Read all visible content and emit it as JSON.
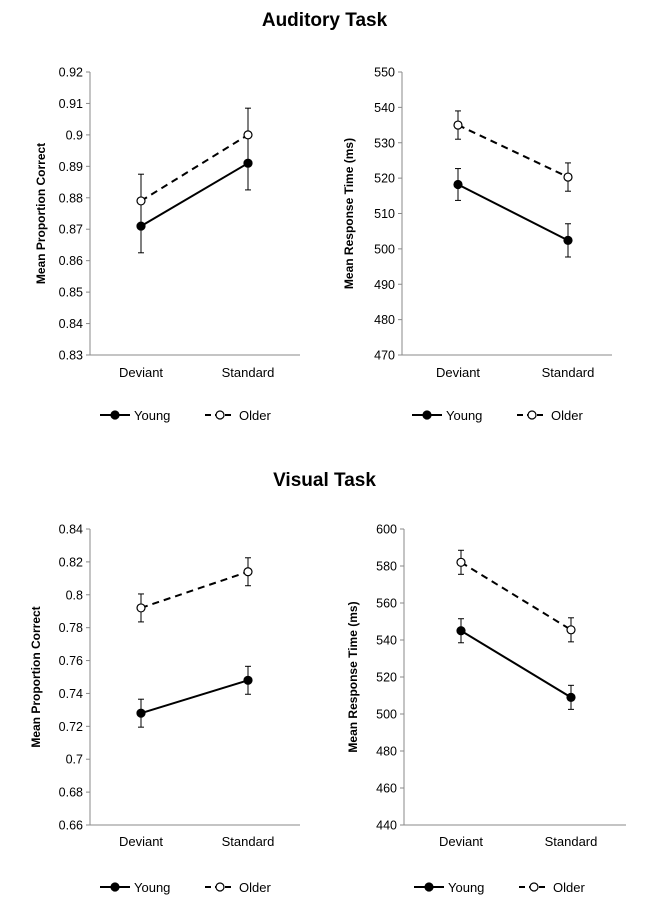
{
  "sections": [
    {
      "title": "Auditory Task"
    },
    {
      "title": "Visual Task"
    }
  ],
  "chart_data": [
    {
      "type": "line",
      "title": "",
      "xlabel": "",
      "ylabel": "Mean Proportion Correct",
      "categories": [
        "Deviant",
        "Standard"
      ],
      "ylim": [
        0.83,
        0.92
      ],
      "yticks": [
        0.83,
        0.84,
        0.85,
        0.86,
        0.87,
        0.88,
        0.89,
        0.9,
        0.91,
        0.92
      ],
      "series": [
        {
          "name": "Young",
          "values": [
            0.871,
            0.891
          ],
          "error": [
            0.0085,
            0.0085
          ],
          "style": "solid",
          "marker": "filled"
        },
        {
          "name": "Older",
          "values": [
            0.879,
            0.9
          ],
          "error": [
            0.0085,
            0.0085
          ],
          "style": "dashed",
          "marker": "open"
        }
      ],
      "legend": "bottom",
      "grid": false
    },
    {
      "type": "line",
      "title": "",
      "xlabel": "",
      "ylabel": "Mean Response Time (ms)",
      "categories": [
        "Deviant",
        "Standard"
      ],
      "ylim": [
        470,
        550
      ],
      "yticks": [
        470,
        480,
        490,
        500,
        510,
        520,
        530,
        540,
        550
      ],
      "series": [
        {
          "name": "Young",
          "values": [
            518.2,
            502.4
          ],
          "error": [
            4.5,
            4.7
          ],
          "style": "solid",
          "marker": "filled"
        },
        {
          "name": "Older",
          "values": [
            535.0,
            520.3
          ],
          "error": [
            4.0,
            4.0
          ],
          "style": "dashed",
          "marker": "open"
        }
      ],
      "legend": "bottom",
      "grid": false
    },
    {
      "type": "line",
      "title": "",
      "xlabel": "",
      "ylabel": "Mean Proportion Correct",
      "categories": [
        "Deviant",
        "Standard"
      ],
      "ylim": [
        0.66,
        0.84
      ],
      "yticks": [
        0.66,
        0.68,
        0.7,
        0.72,
        0.74,
        0.76,
        0.78,
        0.8,
        0.82,
        0.84
      ],
      "series": [
        {
          "name": "Young",
          "values": [
            0.728,
            0.748
          ],
          "error": [
            0.0085,
            0.0085
          ],
          "style": "solid",
          "marker": "filled"
        },
        {
          "name": "Older",
          "values": [
            0.792,
            0.814
          ],
          "error": [
            0.0085,
            0.0085
          ],
          "style": "dashed",
          "marker": "open"
        }
      ],
      "legend": "bottom",
      "grid": false
    },
    {
      "type": "line",
      "title": "",
      "xlabel": "",
      "ylabel": "Mean Response Time (ms)",
      "categories": [
        "Deviant",
        "Standard"
      ],
      "ylim": [
        440,
        600
      ],
      "yticks": [
        440,
        460,
        480,
        500,
        520,
        540,
        560,
        580,
        600
      ],
      "series": [
        {
          "name": "Young",
          "values": [
            545.0,
            509.0
          ],
          "error": [
            6.5,
            6.5
          ],
          "style": "solid",
          "marker": "filled"
        },
        {
          "name": "Older",
          "values": [
            582.0,
            545.5
          ],
          "error": [
            6.5,
            6.5
          ],
          "style": "dashed",
          "marker": "open"
        }
      ],
      "legend": "bottom",
      "grid": false
    }
  ]
}
